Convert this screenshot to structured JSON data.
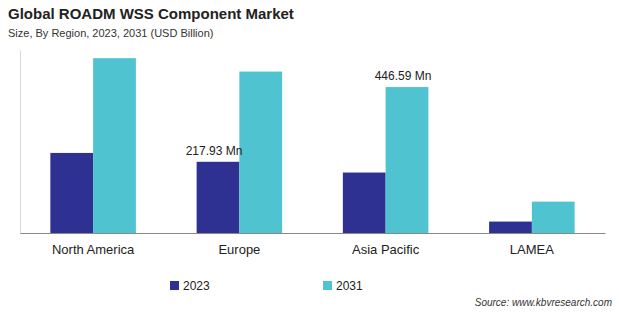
{
  "chart_data": {
    "type": "bar",
    "title": "Global ROADM WSS Component Market",
    "subtitle": "Size, By Region, 2023, 2031 (USD Billion)",
    "source": "Source: www.kbvresearch.com",
    "categories": [
      "North America",
      "Europe",
      "Asia Pacific",
      "LAMEA"
    ],
    "series": [
      {
        "name": "2023",
        "color": "#2e3192",
        "values": [
          245,
          217.93,
          185,
          35
        ],
        "value_labels": [
          null,
          "217.93 Mn",
          null,
          null
        ]
      },
      {
        "name": "2031",
        "color": "#4fc3cf",
        "values": [
          535,
          494,
          446.59,
          96
        ],
        "value_labels": [
          null,
          null,
          "446.59 Mn",
          null
        ]
      }
    ],
    "ylim": [
      0,
      560
    ],
    "tick_labels": "x",
    "data_labels": true,
    "legend": "bottom"
  }
}
